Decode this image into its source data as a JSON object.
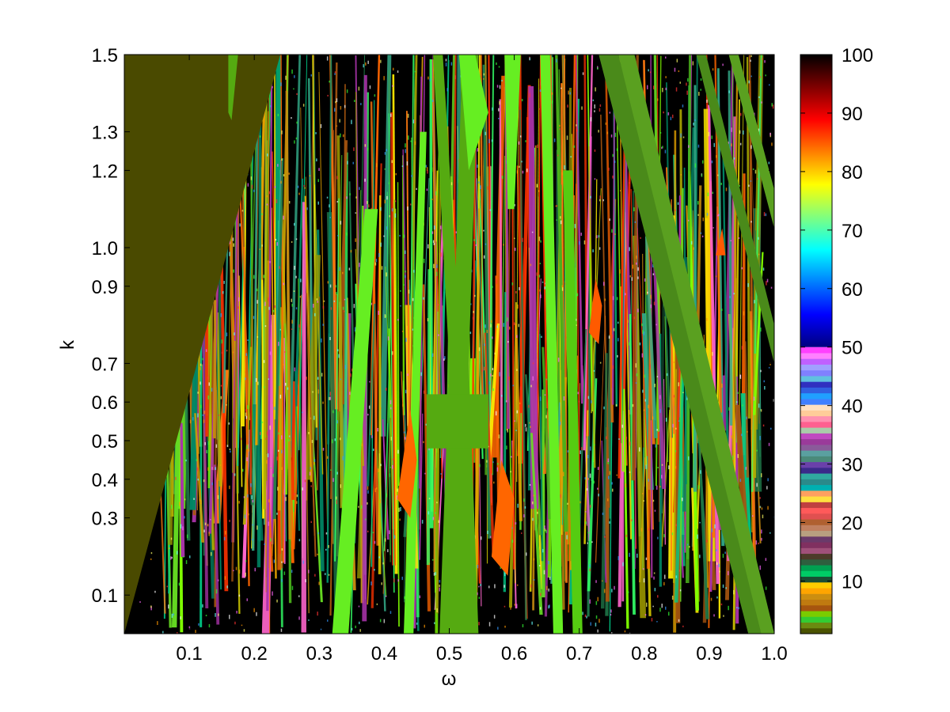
{
  "chart_data": {
    "type": "heatmap",
    "title": "",
    "xlabel": "ω",
    "ylabel": "k",
    "xlim": [
      0.0,
      1.0
    ],
    "ylim": [
      0.0,
      1.5
    ],
    "x_ticks": [
      0.1,
      0.2,
      0.3,
      0.4,
      0.5,
      0.6,
      0.7,
      0.8,
      0.9,
      1.0
    ],
    "x_tick_labels": [
      "0.1",
      "0.2",
      "0.3",
      "0.4",
      "0.5",
      "0.6",
      "0.7",
      "0.8",
      "0.9",
      "1.0"
    ],
    "y_ticks": [
      0.1,
      0.3,
      0.4,
      0.5,
      0.6,
      0.7,
      0.9,
      1.0,
      1.2,
      1.3,
      1.5
    ],
    "y_tick_labels": [
      "0.1",
      "0.3",
      "0.4",
      "0.5",
      "0.6",
      "0.7",
      "0.9",
      "1.0",
      "1.2",
      "1.3",
      "1.5"
    ],
    "colorbar": {
      "range": [
        1,
        100
      ],
      "ticks": [
        10,
        20,
        30,
        40,
        50,
        60,
        70,
        80,
        90,
        100
      ],
      "tick_labels": [
        "10",
        "20",
        "30",
        "40",
        "50",
        "60",
        "70",
        "80",
        "90",
        "100"
      ],
      "discrete_colors_1_to_50": [
        "#4a5200",
        "#6a8a10",
        "#33cc33",
        "#7acc00",
        "#a6550f",
        "#c07a10",
        "#cc8e10",
        "#ffa500",
        "#ffcc00",
        "#1a4d33",
        "#00cc66",
        "#00a050",
        "#2e5f3e",
        "#4d3b2a",
        "#a0507a",
        "#803060",
        "#6a3a6a",
        "#b8a080",
        "#c08060",
        "#b06030",
        "#e05050",
        "#ff5a5a",
        "#c04040",
        "#ffe040",
        "#ffa060",
        "#00b0b0",
        "#2a8a8a",
        "#30aaa0",
        "#3a2a8a",
        "#6a40aa",
        "#4a8a7a",
        "#5aa0a0",
        "#8a5a9a",
        "#9a3a9a",
        "#c04ac0",
        "#aaccaa",
        "#ff6090",
        "#ff90b0",
        "#ffcc99",
        "#ffe0c0",
        "#4080ff",
        "#20a0ff",
        "#3060e0",
        "#3030c0",
        "#60c0e0",
        "#8080ff",
        "#a0a0ff",
        "#c060ff",
        "#ff80ff",
        "#ff40ff"
      ],
      "continuous_colors_50_to_100": [
        "#00007f",
        "#0000ff",
        "#007fff",
        "#00ffff",
        "#7fff7f",
        "#ffff00",
        "#ff7f00",
        "#ff0000",
        "#7f0000",
        "#000000"
      ]
    },
    "regions": {
      "stable_region_color": "#4a4a00",
      "chaotic_background": "#000000"
    }
  }
}
